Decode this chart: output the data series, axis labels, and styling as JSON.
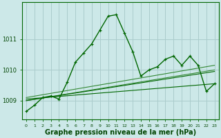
{
  "background_color": "#cce8e8",
  "grid_color": "#aacccc",
  "line_color_dark": "#006600",
  "line_color_mid": "#338833",
  "xlabel": "Graphe pression niveau de la mer (hPa)",
  "xlabel_fontsize": 7,
  "xlim": [
    -0.5,
    23.5
  ],
  "ylim": [
    1008.4,
    1012.2
  ],
  "yticks": [
    1009,
    1010,
    1011
  ],
  "xticks": [
    0,
    1,
    2,
    3,
    4,
    5,
    6,
    7,
    8,
    9,
    10,
    11,
    12,
    13,
    14,
    15,
    16,
    17,
    18,
    19,
    20,
    21,
    22,
    23
  ],
  "series_main": {
    "x": [
      0,
      1,
      2,
      3,
      4,
      5,
      6,
      7,
      8,
      9,
      10,
      11,
      12,
      13,
      14,
      15,
      16,
      17,
      18,
      19,
      20,
      21,
      22,
      23
    ],
    "y": [
      1008.65,
      1008.85,
      1009.1,
      1009.15,
      1009.05,
      1009.6,
      1010.25,
      1010.55,
      1010.85,
      1011.3,
      1011.75,
      1011.8,
      1011.2,
      1010.6,
      1009.8,
      1010.0,
      1010.1,
      1010.35,
      1010.45,
      1010.15,
      1010.45,
      1010.15,
      1009.3,
      1009.55
    ]
  },
  "series_flat1": {
    "x": [
      0,
      23
    ],
    "y": [
      1009.0,
      1010.0
    ]
  },
  "series_flat2": {
    "x": [
      0,
      23
    ],
    "y": [
      1009.1,
      1010.15
    ]
  },
  "series_flat3": {
    "x": [
      0,
      23
    ],
    "y": [
      1009.05,
      1009.55
    ]
  },
  "series_flat4": {
    "x": [
      0,
      23
    ],
    "y": [
      1009.0,
      1009.95
    ]
  }
}
